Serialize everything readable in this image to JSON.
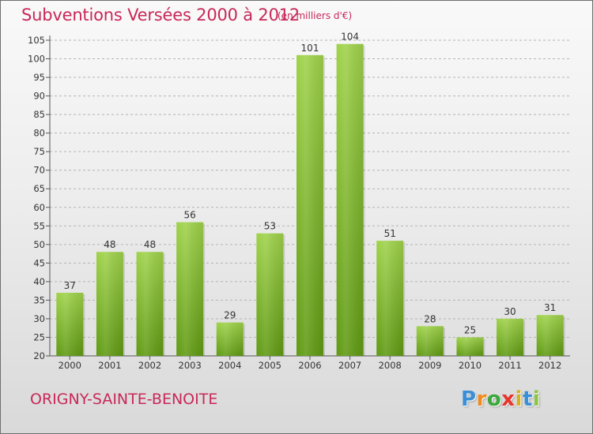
{
  "header": {
    "title": "Subventions Versées 2000 à 2012",
    "unit": "(en milliers d'€)"
  },
  "footer": {
    "commune": "ORIGNY-SAINTE-BENOITE",
    "logo_letters": [
      "P",
      "r",
      "o",
      "x",
      "i",
      "t",
      "i"
    ],
    "logo_colors": [
      "#3a8fd6",
      "#f08a1c",
      "#3aa83a",
      "#e8332a",
      "#d6b01e",
      "#3a8fd6",
      "#8cc63e"
    ]
  },
  "colors": {
    "title": "#c8285a",
    "bar_top": "#9fd24a",
    "bar_bottom": "#5f9a12",
    "grid": "#b4b4b4",
    "axis_text": "#333333"
  },
  "chart_data": {
    "type": "bar",
    "title": "Subventions Versées 2000 à 2012",
    "categories": [
      "2000",
      "2001",
      "2002",
      "2003",
      "2004",
      "2005",
      "2006",
      "2007",
      "2008",
      "2009",
      "2010",
      "2011",
      "2012"
    ],
    "values": [
      37,
      48,
      48,
      56,
      29,
      53,
      101,
      104,
      51,
      28,
      25,
      30,
      31
    ],
    "data_labels": [
      "37",
      "48",
      "48",
      "56",
      "29",
      "53",
      "101",
      "104",
      "51",
      "28",
      "25",
      "30",
      "31"
    ],
    "xlabel": "",
    "ylabel": "",
    "ylim": [
      20,
      105
    ],
    "yticks": [
      20,
      25,
      30,
      35,
      40,
      45,
      50,
      55,
      60,
      65,
      70,
      75,
      80,
      85,
      90,
      95,
      100,
      105
    ],
    "grid": true,
    "legend": false
  }
}
